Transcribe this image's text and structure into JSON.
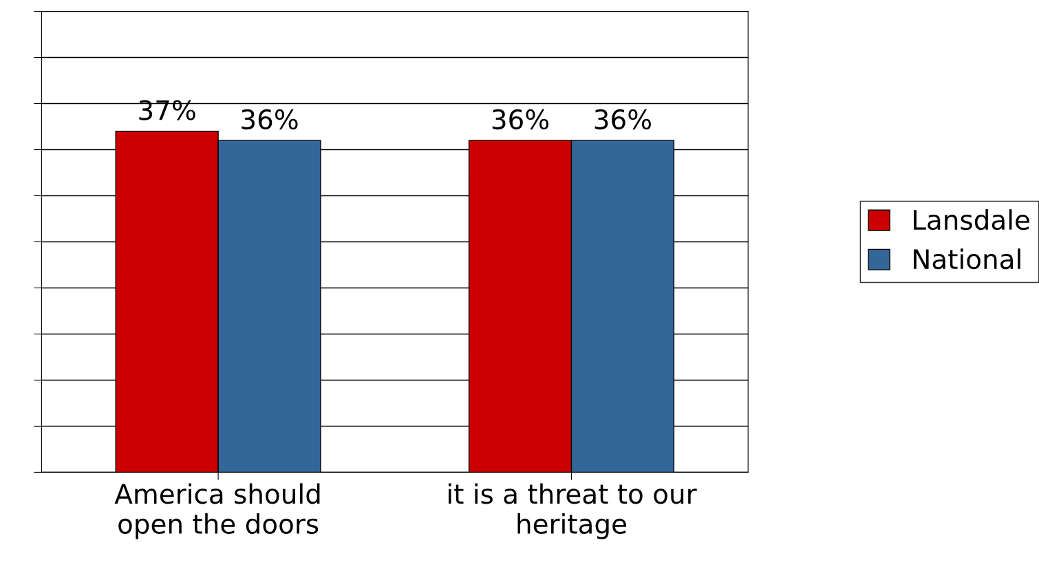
{
  "chart_data": {
    "type": "bar",
    "categories": [
      "America should\nopen the doors",
      "it is a threat to our\nheritage"
    ],
    "series": [
      {
        "name": "Lansdale",
        "color": "#cc0000",
        "values": [
          37,
          36
        ],
        "value_labels": [
          "37%",
          "36%"
        ]
      },
      {
        "name": "National",
        "color": "#336699",
        "values": [
          36,
          36
        ],
        "value_labels": [
          "36%",
          "36%"
        ]
      }
    ],
    "ylim": [
      0,
      50
    ],
    "yticks": [
      {
        "value": 0,
        "label": null
      },
      {
        "value": 5,
        "label": null
      },
      {
        "value": 10,
        "label": null
      },
      {
        "value": 15,
        "label": null
      },
      {
        "value": 20,
        "label": null
      },
      {
        "value": 25,
        "label": null
      },
      {
        "value": 30,
        "label": null
      },
      {
        "value": 35,
        "label": null
      },
      {
        "value": 40,
        "label": null
      },
      {
        "value": 45,
        "label": null
      },
      {
        "value": 50,
        "label": null
      }
    ],
    "grid": "y",
    "legend": "right",
    "tick_labels": "x"
  }
}
